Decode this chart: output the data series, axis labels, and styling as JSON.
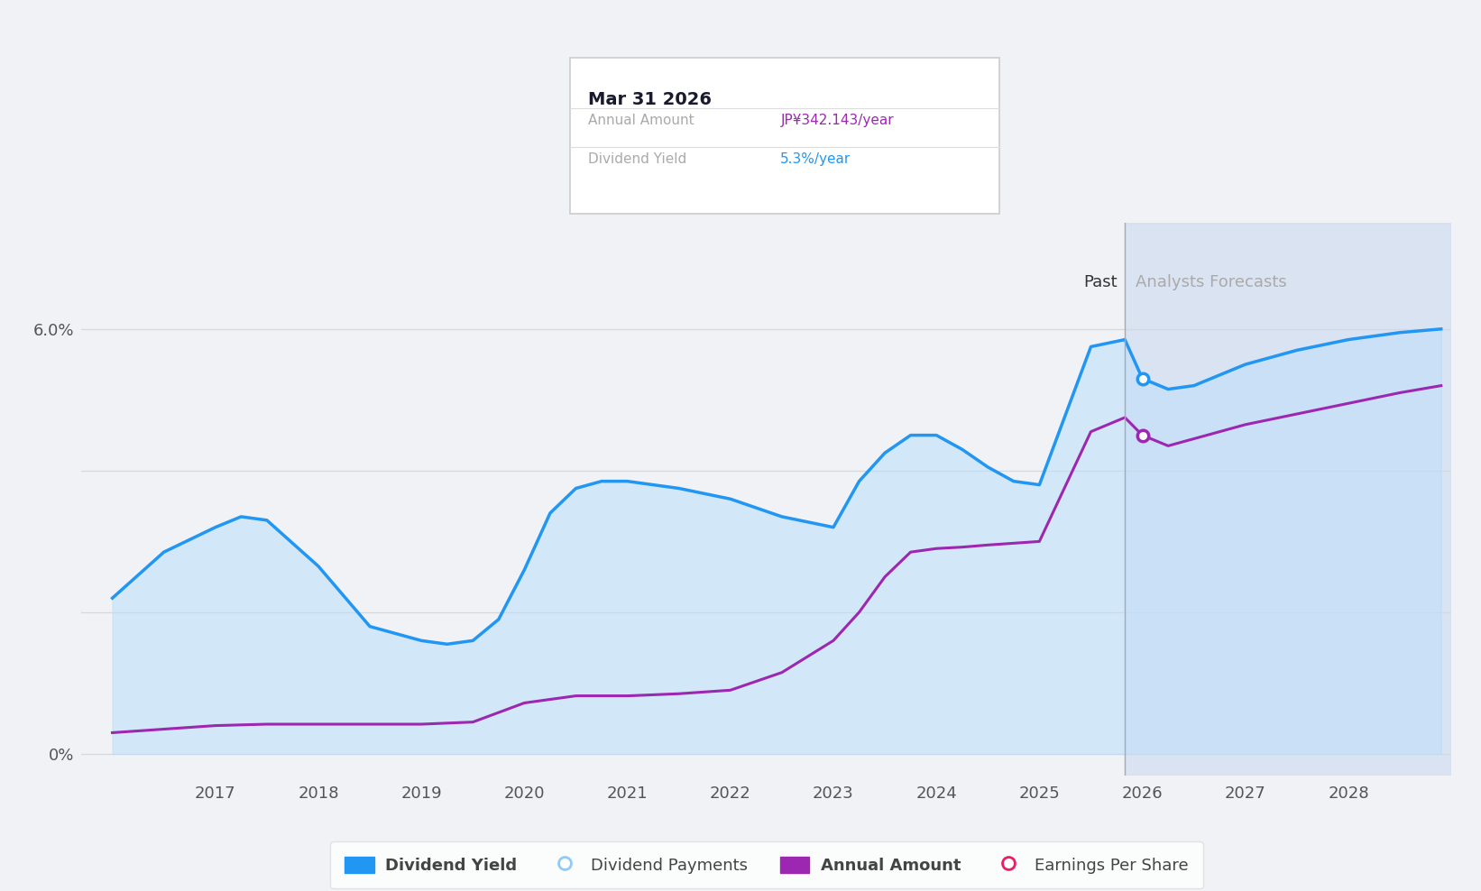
{
  "background_color": "#f0f2f5",
  "plot_bg_color": "#f0f2f5",
  "ylim": [
    -0.3,
    7.5
  ],
  "xlim": [
    2015.7,
    2029.0
  ],
  "xtick_years": [
    2017,
    2018,
    2019,
    2020,
    2021,
    2022,
    2023,
    2024,
    2025,
    2026,
    2027,
    2028
  ],
  "past_line_x": 2025.83,
  "forecast_shade_start": 2025.83,
  "forecast_shade_end": 2029.0,
  "dividend_yield_x": [
    2016.0,
    2016.5,
    2017.0,
    2017.25,
    2017.5,
    2018.0,
    2018.5,
    2019.0,
    2019.25,
    2019.5,
    2019.75,
    2020.0,
    2020.25,
    2020.5,
    2020.75,
    2021.0,
    2021.25,
    2021.5,
    2022.0,
    2022.5,
    2023.0,
    2023.25,
    2023.5,
    2023.75,
    2024.0,
    2024.25,
    2024.5,
    2024.75,
    2025.0,
    2025.5,
    2025.83,
    2026.0,
    2026.25,
    2026.5,
    2027.0,
    2027.5,
    2028.0,
    2028.5,
    2028.9
  ],
  "dividend_yield_y": [
    2.2,
    2.85,
    3.2,
    3.35,
    3.3,
    2.65,
    1.8,
    1.6,
    1.55,
    1.6,
    1.9,
    2.6,
    3.4,
    3.75,
    3.85,
    3.85,
    3.8,
    3.75,
    3.6,
    3.35,
    3.2,
    3.85,
    4.25,
    4.5,
    4.5,
    4.3,
    4.05,
    3.85,
    3.8,
    5.75,
    5.85,
    5.3,
    5.15,
    5.2,
    5.5,
    5.7,
    5.85,
    5.95,
    6.0
  ],
  "annual_amount_x": [
    2016.0,
    2016.5,
    2017.0,
    2017.5,
    2018.0,
    2018.5,
    2019.0,
    2019.5,
    2020.0,
    2020.5,
    2021.0,
    2021.5,
    2022.0,
    2022.5,
    2023.0,
    2023.25,
    2023.5,
    2023.75,
    2024.0,
    2024.25,
    2024.5,
    2025.0,
    2025.5,
    2025.83,
    2026.0,
    2026.25,
    2026.5,
    2027.0,
    2027.5,
    2028.0,
    2028.5,
    2028.9
  ],
  "annual_amount_y": [
    0.3,
    0.35,
    0.4,
    0.42,
    0.42,
    0.42,
    0.42,
    0.45,
    0.72,
    0.82,
    0.82,
    0.85,
    0.9,
    1.15,
    1.6,
    2.0,
    2.5,
    2.85,
    2.9,
    2.92,
    2.95,
    3.0,
    4.55,
    4.75,
    4.5,
    4.35,
    4.45,
    4.65,
    4.8,
    4.95,
    5.1,
    5.2
  ],
  "dividend_yield_color": "#2196F3",
  "annual_amount_color": "#9C27B0",
  "fill_color": "#BBDEFB",
  "fill_alpha": 0.55,
  "forecast_shade_color": "#c8d8ee",
  "forecast_shade_alpha": 0.55,
  "tooltip_title": "Mar 31 2026",
  "tooltip_annual_amount": "JP¥342.143/year",
  "tooltip_dividend_yield": "5.3%/year",
  "tooltip_annual_amount_color": "#9C27B0",
  "tooltip_dividend_yield_color": "#2196F3",
  "past_label": "Past",
  "forecasts_label": "Analysts Forecasts",
  "grid_color": "#d5d8dc",
  "dot_x_yield": 2026.0,
  "dot_y_yield": 5.3,
  "dot_x_annual": 2026.0,
  "dot_y_annual": 4.5,
  "legend_items": [
    {
      "label": "Dividend Yield",
      "color": "#2196F3",
      "filled": true
    },
    {
      "label": "Dividend Payments",
      "color": "#90CAF9",
      "filled": false
    },
    {
      "label": "Annual Amount",
      "color": "#9C27B0",
      "filled": true
    },
    {
      "label": "Earnings Per Share",
      "color": "#E91E63",
      "filled": false
    }
  ]
}
